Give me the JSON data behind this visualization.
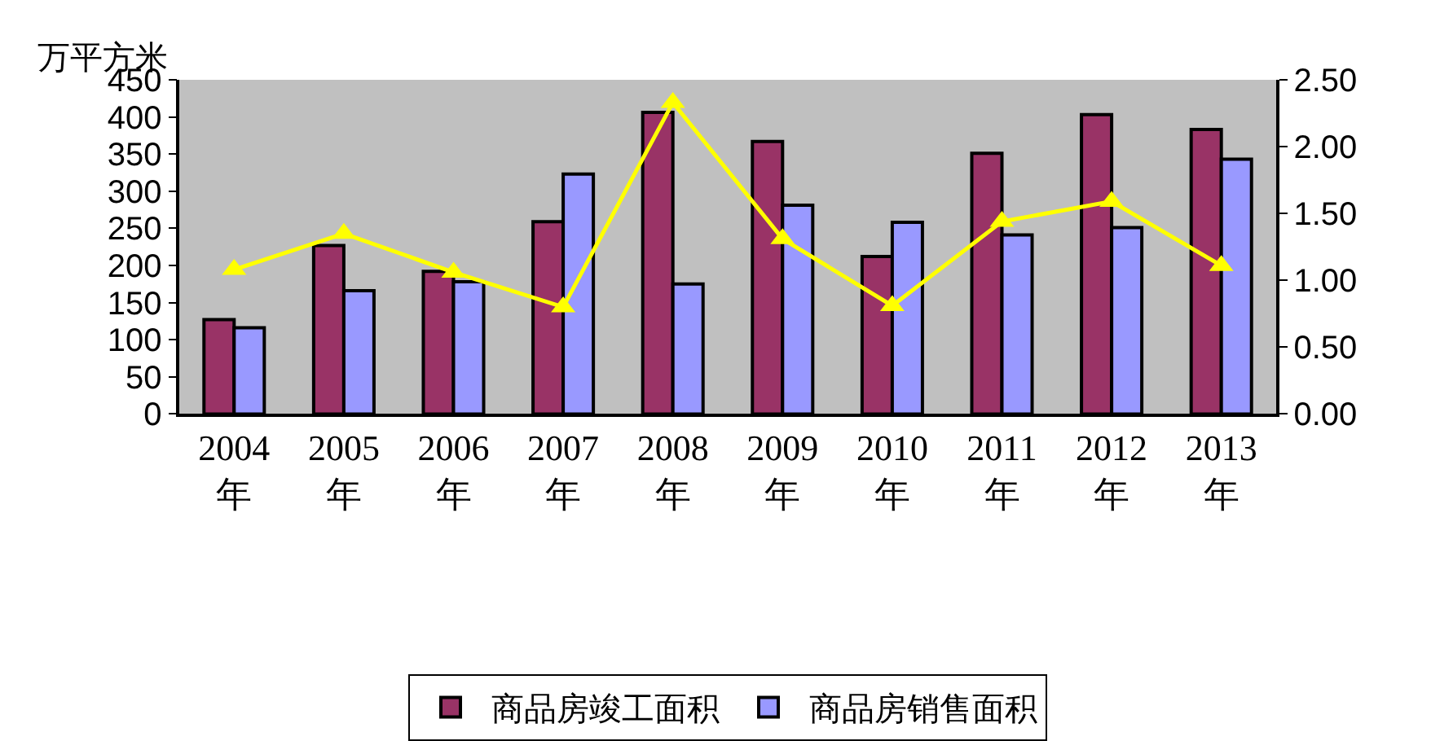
{
  "chart_data": {
    "type": "bar",
    "ylabel": "万平方米",
    "categories": [
      "2004\n年",
      "2005\n年",
      "2006\n年",
      "2007\n年",
      "2008\n年",
      "2009\n年",
      "2010\n年",
      "2011\n年",
      "2012\n年",
      "2013\n年"
    ],
    "series": [
      {
        "name": "商品房竣工面积",
        "color": "#993366",
        "values": [
          127,
          227,
          192,
          259,
          406,
          367,
          212,
          351,
          403,
          383
        ]
      },
      {
        "name": "商品房销售面积",
        "color": "#9999ff",
        "values": [
          116,
          166,
          178,
          323,
          175,
          281,
          258,
          241,
          251,
          343
        ]
      },
      {
        "type": "line",
        "axis": "y2",
        "color": "#ffff00",
        "marker": "triangle",
        "values": [
          1.08,
          1.35,
          1.06,
          0.8,
          2.33,
          1.31,
          0.81,
          1.44,
          1.59,
          1.11
        ]
      }
    ],
    "ylim": [
      0,
      450
    ],
    "yticks": [
      0,
      50,
      100,
      150,
      200,
      250,
      300,
      350,
      400,
      450
    ],
    "y2lim": [
      0,
      2.5
    ],
    "y2ticks": [
      {
        "value": 0,
        "label": "0.00"
      },
      {
        "value": 0.5,
        "label": "0.50"
      },
      {
        "value": 1,
        "label": "1.00"
      },
      {
        "value": 1.5,
        "label": "1.50"
      },
      {
        "value": 2,
        "label": "2.00"
      },
      {
        "value": 2.5,
        "label": "2.50"
      }
    ],
    "grid": false,
    "legend": "bottom"
  }
}
